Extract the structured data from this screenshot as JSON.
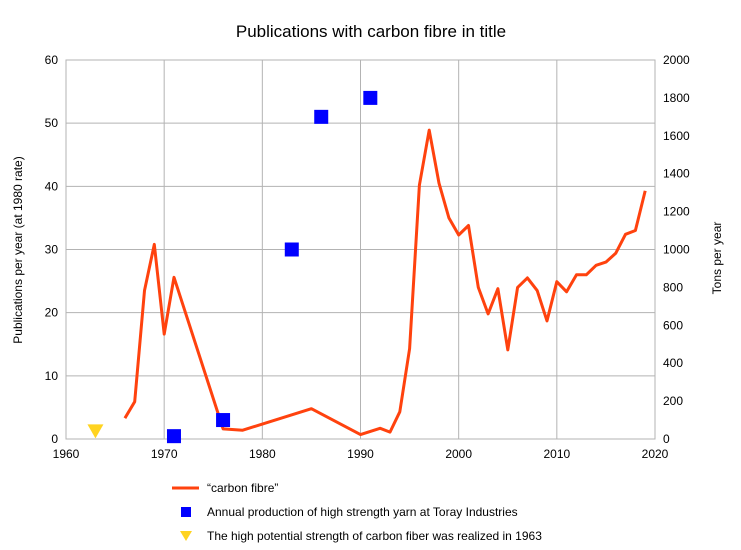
{
  "chart_data": {
    "type": "line",
    "title": "Publications with carbon fibre in title",
    "xlabel": "",
    "ylabel": "Publications per year (at 1980 rate)",
    "y2label": "Tons per year",
    "xlim": [
      1960,
      2020
    ],
    "ylim": [
      0,
      60
    ],
    "y2lim": [
      0,
      2000
    ],
    "xticks": [
      1960,
      1970,
      1980,
      1990,
      2000,
      2010,
      2020
    ],
    "yticks": [
      0,
      10,
      20,
      30,
      40,
      50,
      60
    ],
    "y2ticks": [
      0,
      200,
      400,
      600,
      800,
      1000,
      1200,
      1400,
      1600,
      1800,
      2000
    ],
    "grid": true,
    "legend_position": "bottom",
    "series": [
      {
        "name": "“carbon fibre”",
        "kind": "line",
        "axis": "left",
        "color": "#ff420e",
        "x": [
          1966,
          1967,
          1968,
          1969,
          1970,
          1971,
          1976,
          1978,
          1985,
          1990,
          1992,
          1993,
          1994,
          1995,
          1996,
          1997,
          1998,
          1999,
          2000,
          2001,
          2002,
          2003,
          2004,
          2005,
          2006,
          2007,
          2008,
          2009,
          2010,
          2011,
          2012,
          2013,
          2014,
          2015,
          2016,
          2017,
          2018,
          2019
        ],
        "y": [
          3.3,
          5.9,
          23.5,
          30.8,
          16.6,
          25.6,
          1.6,
          1.4,
          4.8,
          0.7,
          1.7,
          1.1,
          4.3,
          14.3,
          40.2,
          48.9,
          40.5,
          35.0,
          32.3,
          33.8,
          24.0,
          19.8,
          23.8,
          14.1,
          24.0,
          25.5,
          23.5,
          18.7,
          24.9,
          23.3,
          26.0,
          26.0,
          27.5,
          28.0,
          29.4,
          32.4,
          33.0,
          39.3
        ]
      },
      {
        "name": "Annual production of high strength yarn at Toray Industries",
        "kind": "scatter",
        "marker": "square",
        "axis": "right",
        "color": "#0000ff",
        "x": [
          1971,
          1976,
          1983,
          1986,
          1991
        ],
        "y": [
          15,
          100,
          1000,
          1700,
          1800
        ]
      },
      {
        "name": "The high potential strength of carbon fiber was realized in 1963",
        "kind": "scatter",
        "marker": "triangle-down",
        "axis": "left",
        "color": "#ffd320",
        "x": [
          1963
        ],
        "y": [
          1.2
        ]
      }
    ]
  }
}
